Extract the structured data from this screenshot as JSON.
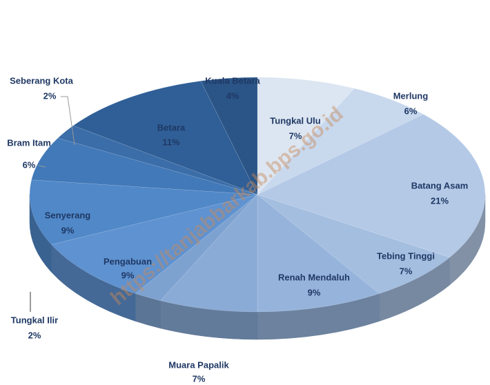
{
  "chart_data": {
    "type": "pie",
    "watermark": "https://tanjabbarkab.bps.go.id",
    "categories": [
      "Tungkal Ulu",
      "Merlung",
      "Batang Asam",
      "Tebing Tinggi",
      "Renah Mendaluh",
      "Muara Papalik",
      "Tungkal Ilir",
      "Pengabuan",
      "Senyerang",
      "Bram Itam",
      "Seberang Kota",
      "Betara",
      "Kuala Betara"
    ],
    "values": [
      7,
      6,
      21,
      7,
      9,
      7,
      2,
      9,
      9,
      6,
      2,
      11,
      4
    ],
    "value_labels": [
      "7%",
      "6%",
      "21%",
      "7%",
      "9%",
      "7%",
      "2%",
      "9%",
      "9%",
      "6%",
      "2%",
      "11%",
      "4%"
    ],
    "colors": [
      "#dce6f2",
      "#c8d8ed",
      "#b4c9e6",
      "#a4bee0",
      "#96b4db",
      "#8aabd6",
      "#7ea2d0",
      "#5f92d0",
      "#5088c8",
      "#4279b8",
      "#3b6da8",
      "#305f97",
      "#2b5587"
    ]
  }
}
